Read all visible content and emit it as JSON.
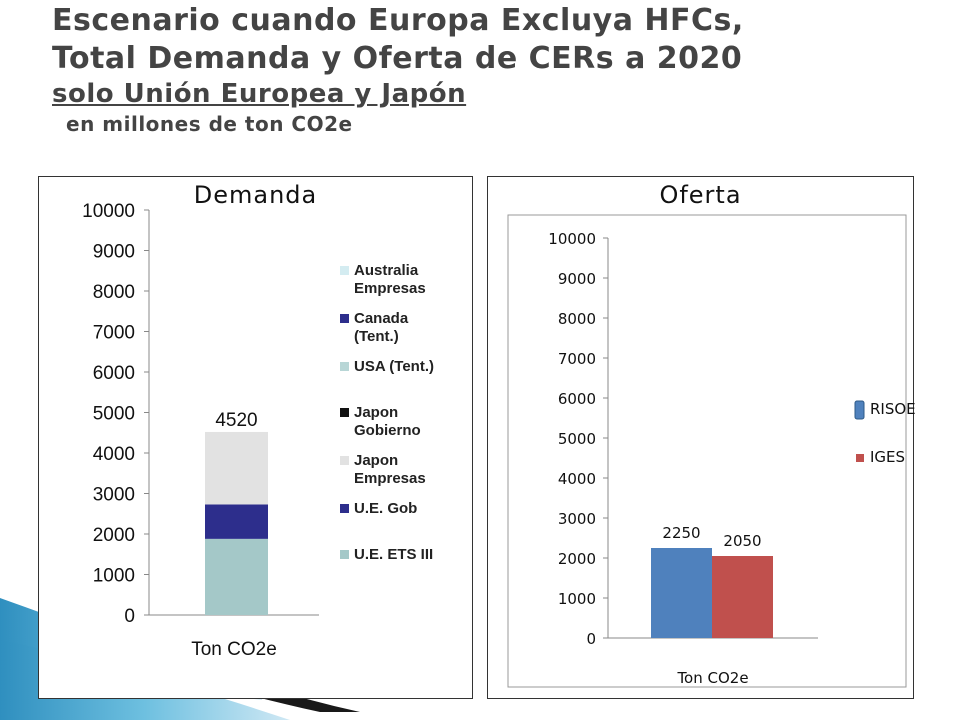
{
  "title": {
    "line1": "Escenario cuando Europa Excluya HFCs,",
    "line2": "Total Demanda y Oferta de CERs a 2020",
    "line3": "solo Unión Europea y Japón",
    "line4": "en millones de ton CO2e"
  },
  "colors": {
    "australia": "#d4ecf1",
    "canada": "#2d2e8c",
    "usa": "#b8d6d6",
    "japon_gob": "#111111",
    "japon_emp": "#e2e2e2",
    "ue_gob": "#2d2e8c",
    "ue_ets": "#a4c8c8",
    "risoe": "#4f81bd",
    "iges": "#c0504d"
  },
  "chart_data": [
    {
      "type": "bar",
      "stacked": true,
      "title": "Demanda",
      "categories": [
        "Ton CO2e"
      ],
      "yticks": [
        "0",
        "1000",
        "2000",
        "3000",
        "4000",
        "5000",
        "6000",
        "7000",
        "8000",
        "9000",
        "10000"
      ],
      "ylim": [
        0,
        10000
      ],
      "total_label": "4520",
      "legend_position": "right",
      "series": [
        {
          "name": "U.E. ETS III",
          "name_lines": [
            "U.E. ETS III"
          ],
          "values": [
            1880
          ],
          "color_key": "ue_ets"
        },
        {
          "name": "U.E. Gob",
          "name_lines": [
            "U.E. Gob"
          ],
          "values": [
            850
          ],
          "color_key": "ue_gob"
        },
        {
          "name": "Japon Empresas",
          "name_lines": [
            "Japon",
            "Empresas"
          ],
          "values": [
            1790
          ],
          "color_key": "japon_emp"
        },
        {
          "name": "Japon Gobierno",
          "name_lines": [
            "Japon",
            "Gobierno"
          ],
          "values": [
            0
          ],
          "color_key": "japon_gob"
        },
        {
          "name": "USA (Tent.)",
          "name_lines": [
            "USA (Tent.)"
          ],
          "values": [
            0
          ],
          "color_key": "usa"
        },
        {
          "name": "Canada (Tent.)",
          "name_lines": [
            "Canada",
            "(Tent.)"
          ],
          "values": [
            0
          ],
          "color_key": "canada"
        },
        {
          "name": "Australia Empresas",
          "name_lines": [
            "Australia",
            "Empresas"
          ],
          "values": [
            0
          ],
          "color_key": "australia"
        }
      ]
    },
    {
      "type": "bar",
      "title": "Oferta",
      "categories": [
        "Ton CO2e"
      ],
      "yticks": [
        "0",
        "1000",
        "2000",
        "3000",
        "4000",
        "5000",
        "6000",
        "7000",
        "8000",
        "9000",
        "10000"
      ],
      "ylim": [
        0,
        10000
      ],
      "legend_position": "right",
      "series": [
        {
          "name": "RISOE",
          "values": [
            2250
          ],
          "label": "2250",
          "color_key": "risoe"
        },
        {
          "name": "IGES",
          "values": [
            2050
          ],
          "label": "2050",
          "color_key": "iges"
        }
      ]
    }
  ]
}
